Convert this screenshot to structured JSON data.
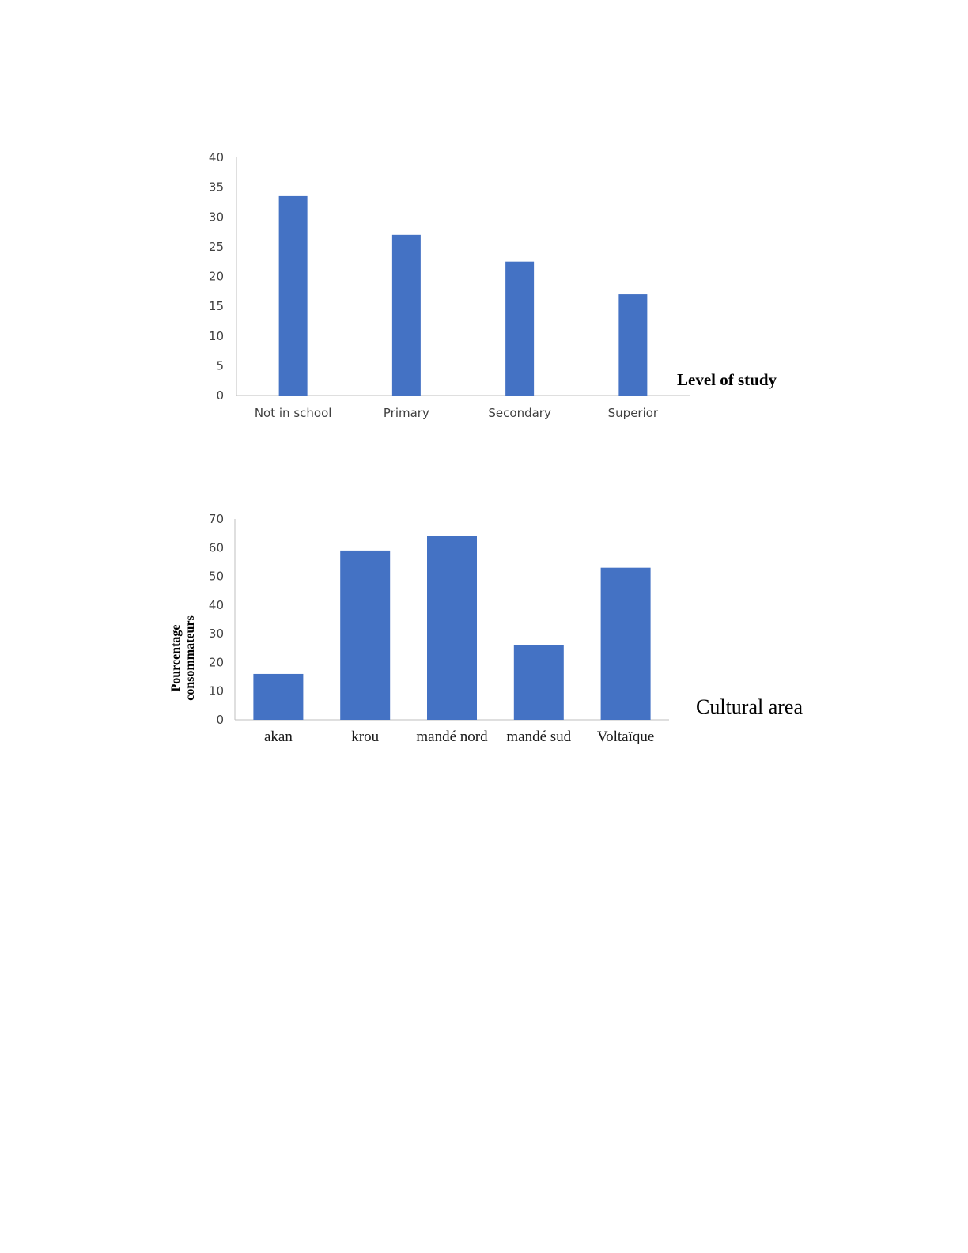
{
  "chart_data": [
    {
      "type": "bar",
      "title": "",
      "xlabel": "Level of study",
      "ylabel": "",
      "categories": [
        "Not in school",
        "Primary",
        "Secondary",
        "Superior"
      ],
      "values": [
        33.5,
        27,
        22.5,
        17
      ],
      "ylim": [
        0,
        40
      ],
      "yticks": [
        "0",
        "5",
        "10",
        "15",
        "20",
        "25",
        "30",
        "35",
        "40"
      ],
      "grid": false,
      "bar_color": "#4472C4"
    },
    {
      "type": "bar",
      "title": "",
      "xlabel": "Cultural area",
      "ylabel_lines": [
        "Pourcentage",
        "consommateurs"
      ],
      "categories": [
        "akan",
        "krou",
        "mandé nord",
        "mandé sud",
        "Voltaïque"
      ],
      "values": [
        16,
        59,
        64,
        26,
        53
      ],
      "ylim": [
        0,
        70
      ],
      "yticks": [
        "0",
        "10",
        "20",
        "30",
        "40",
        "50",
        "60",
        "70"
      ],
      "grid": false,
      "bar_color": "#4472C4"
    }
  ]
}
